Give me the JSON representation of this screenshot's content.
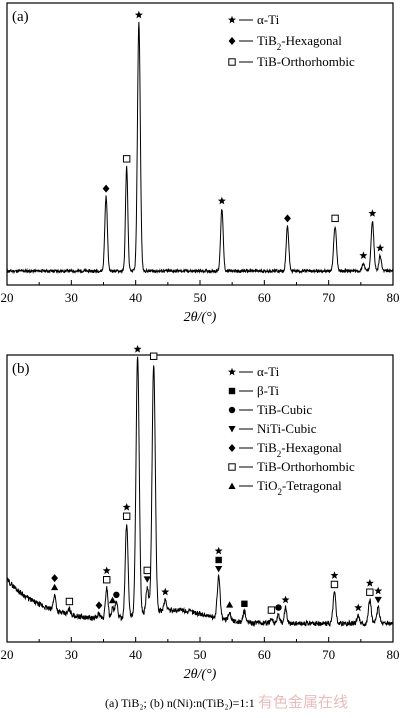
{
  "chart_data": [
    {
      "type": "line",
      "panel_label": "(a)",
      "xlabel": "2θ/(°)",
      "xlim": [
        20,
        80
      ],
      "x_ticks": [
        "20",
        "30",
        "40",
        "50",
        "60",
        "70",
        "80"
      ],
      "y_ticks_shown": false,
      "legend_position": "top-right",
      "legend": [
        {
          "marker": "star",
          "label": "α-Ti"
        },
        {
          "marker": "diamond",
          "label": "TiB2-Hexagonal"
        },
        {
          "marker": "open-square",
          "label": "TiB-Orthorhombic"
        }
      ],
      "peaks": [
        {
          "x": 35.4,
          "h": 0.3,
          "w": 0.2,
          "marker": "diamond"
        },
        {
          "x": 38.6,
          "h": 0.42,
          "w": 0.18,
          "marker": "open-square"
        },
        {
          "x": 40.5,
          "h": 1.0,
          "w": 0.22,
          "marker": "star"
        },
        {
          "x": 53.4,
          "h": 0.25,
          "w": 0.2,
          "marker": "star"
        },
        {
          "x": 63.6,
          "h": 0.18,
          "w": 0.2,
          "marker": "diamond"
        },
        {
          "x": 71.0,
          "h": 0.18,
          "w": 0.22,
          "marker": "open-square"
        },
        {
          "x": 75.4,
          "h": 0.03,
          "w": 0.2,
          "marker": "star"
        },
        {
          "x": 76.8,
          "h": 0.2,
          "w": 0.22,
          "marker": "star"
        },
        {
          "x": 78.0,
          "h": 0.06,
          "w": 0.2,
          "marker": "star"
        }
      ]
    },
    {
      "type": "line",
      "panel_label": "(b)",
      "xlabel": "2θ/(°)",
      "xlim": [
        20,
        80
      ],
      "x_ticks": [
        "20",
        "30",
        "40",
        "50",
        "60",
        "70",
        "80"
      ],
      "y_ticks_shown": false,
      "legend_position": "top-right",
      "legend": [
        {
          "marker": "star",
          "label": "α-Ti"
        },
        {
          "marker": "filled-square",
          "label": "β-Ti"
        },
        {
          "marker": "filled-circle",
          "label": "TiB-Cubic"
        },
        {
          "marker": "filled-triangle-down",
          "label": "NiTi-Cubic"
        },
        {
          "marker": "diamond",
          "label": "TiB2-Hexagonal"
        },
        {
          "marker": "open-square",
          "label": "TiB-Orthorhombic"
        },
        {
          "marker": "filled-triangle-up",
          "label": "TiO2-Tetragonal"
        }
      ],
      "peaks": [
        {
          "x": 27.4,
          "h": 0.06,
          "w": 0.2,
          "markers": [
            "triangle-up",
            "diamond"
          ]
        },
        {
          "x": 29.7,
          "h": 0.02,
          "w": 0.2,
          "markers": [
            "open-square"
          ]
        },
        {
          "x": 34.3,
          "h": 0.02,
          "w": 0.2,
          "markers": [
            "diamond"
          ]
        },
        {
          "x": 35.5,
          "h": 0.12,
          "w": 0.2,
          "markers": [
            "open-square",
            "star"
          ]
        },
        {
          "x": 36.4,
          "h": 0.04,
          "w": 0.2,
          "markers": [
            "triangle-up"
          ]
        },
        {
          "x": 37.0,
          "h": 0.06,
          "w": 0.2,
          "markers": [
            "circle"
          ]
        },
        {
          "x": 38.6,
          "h": 0.36,
          "w": 0.22,
          "markers": [
            "open-square",
            "star"
          ]
        },
        {
          "x": 40.3,
          "h": 1.0,
          "w": 0.25,
          "markers": [
            "star"
          ]
        },
        {
          "x": 41.8,
          "h": 0.1,
          "w": 0.2,
          "markers": [
            "triangle-down",
            "open-square"
          ]
        },
        {
          "x": 42.8,
          "h": 0.96,
          "w": 0.25,
          "markers": [
            "open-square"
          ]
        },
        {
          "x": 44.6,
          "h": 0.04,
          "w": 0.2,
          "markers": [
            "star"
          ]
        },
        {
          "x": 52.9,
          "h": 0.16,
          "w": 0.22,
          "markers": [
            "triangle-down",
            "filled-square",
            "star"
          ]
        },
        {
          "x": 54.6,
          "h": 0.03,
          "w": 0.2,
          "markers": [
            "triangle-up"
          ]
        },
        {
          "x": 56.9,
          "h": 0.04,
          "w": 0.2,
          "markers": [
            "filled-square"
          ]
        },
        {
          "x": 61.1,
          "h": 0.02,
          "w": 0.2,
          "markers": [
            "open-square"
          ]
        },
        {
          "x": 62.2,
          "h": 0.03,
          "w": 0.2,
          "markers": [
            "circle"
          ]
        },
        {
          "x": 63.3,
          "h": 0.06,
          "w": 0.2,
          "markers": [
            "star"
          ]
        },
        {
          "x": 70.9,
          "h": 0.12,
          "w": 0.22,
          "markers": [
            "open-square",
            "star"
          ]
        },
        {
          "x": 74.6,
          "h": 0.03,
          "w": 0.2,
          "markers": [
            "star"
          ]
        },
        {
          "x": 76.4,
          "h": 0.09,
          "w": 0.22,
          "markers": [
            "open-square",
            "star"
          ]
        },
        {
          "x": 77.7,
          "h": 0.06,
          "w": 0.22,
          "markers": [
            "triangle-down",
            "star"
          ]
        }
      ]
    }
  ],
  "caption": "(a) TiB₂; (b) n(Ni):n(TiB₂)=1:1",
  "watermark": "有色金属在线"
}
